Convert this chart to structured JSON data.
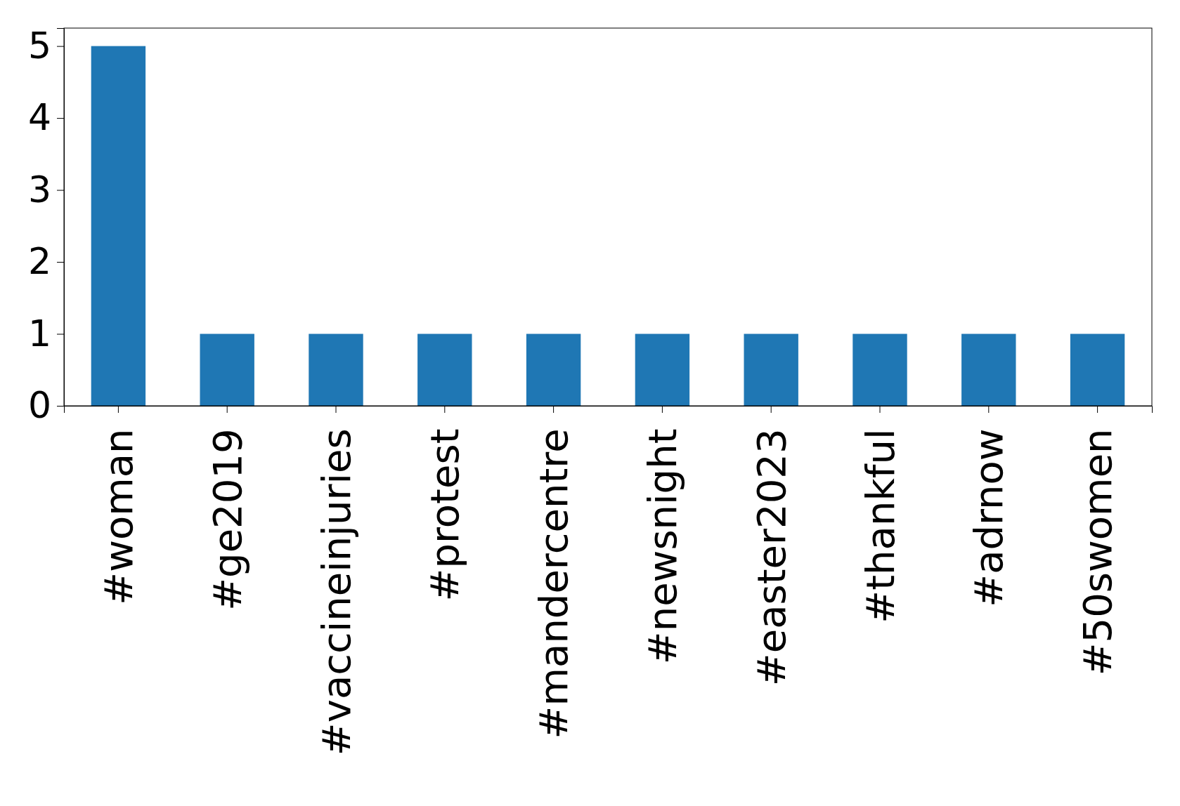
{
  "chart_data": {
    "type": "bar",
    "categories": [
      "#woman",
      "#ge2019",
      "#vaccineinjuries",
      "#protest",
      "#mandercentre",
      "#newsnight",
      "#easter2023",
      "#thankful",
      "#adrnow",
      "#50swomen"
    ],
    "values": [
      5,
      1,
      1,
      1,
      1,
      1,
      1,
      1,
      1,
      1
    ],
    "color": "#1f77b4",
    "ylim": [
      0,
      5.25
    ],
    "yticks": [
      0,
      1,
      2,
      3,
      4,
      5
    ],
    "grid": false
  }
}
